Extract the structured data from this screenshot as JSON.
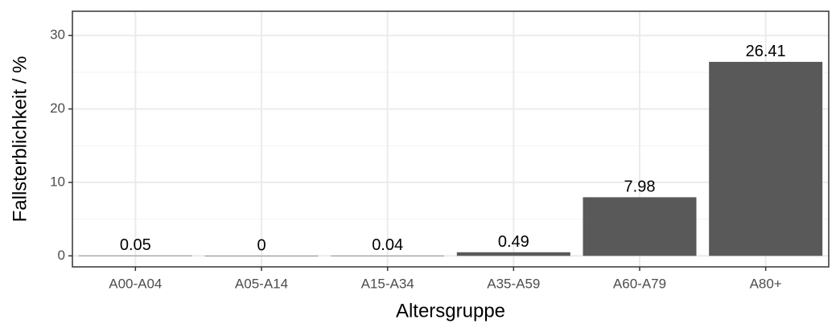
{
  "chart_data": {
    "type": "bar",
    "x_label": "Altersgruppe",
    "y_label": "Fallsterblichkeit / %",
    "categories": [
      "A00-A04",
      "A05-A14",
      "A15-A34",
      "A35-A59",
      "A60-A79",
      "A80+"
    ],
    "values": [
      0.05,
      0,
      0.04,
      0.49,
      7.98,
      26.41
    ],
    "color": "#595959",
    "ylim": [
      -1.5,
      33.3
    ],
    "yticks": [
      0,
      10,
      20,
      30
    ],
    "grid": true
  }
}
